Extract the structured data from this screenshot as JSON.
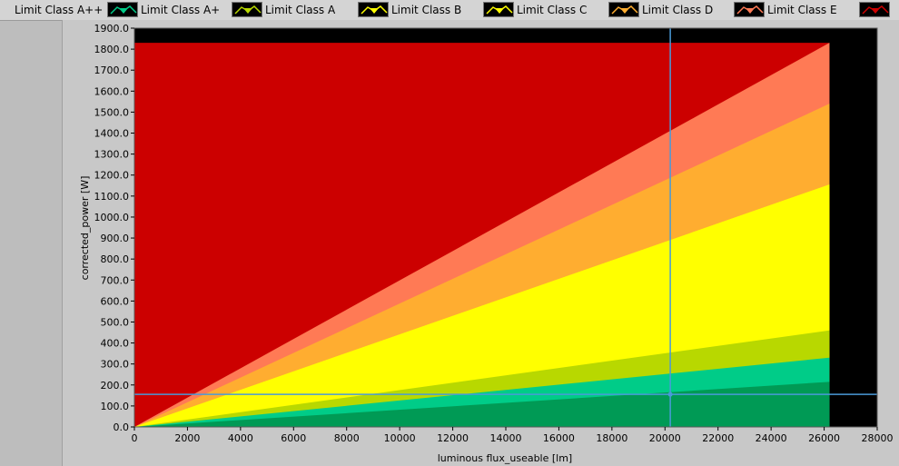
{
  "legend": [
    {
      "label": "Limit Class A++",
      "color": "#009a55"
    },
    {
      "label": "Limit Class A+",
      "color": "#00cc88"
    },
    {
      "label": "Limit Class A",
      "color": "#b8d800"
    },
    {
      "label": "Limit Class B",
      "color": "#ffff00"
    },
    {
      "label": "Limit Class C",
      "color": "#ffff00"
    },
    {
      "label": "Limit Class D",
      "color": "#ffad30"
    },
    {
      "label": "Limit Class E",
      "color": "#ff7a55"
    },
    {
      "label": "",
      "color": "#cc0000"
    }
  ],
  "chart_data": {
    "type": "area",
    "xlabel": "luminous flux_useable [lm]",
    "ylabel": "corrected_power [W]",
    "xlim": [
      0,
      28000
    ],
    "ylim": [
      0,
      1900
    ],
    "x_ticks": [
      0,
      2000,
      4000,
      6000,
      8000,
      10000,
      12000,
      14000,
      16000,
      18000,
      20000,
      22000,
      24000,
      26000,
      28000
    ],
    "y_ticks": [
      0,
      100,
      200,
      300,
      400,
      500,
      600,
      700,
      800,
      900,
      1000,
      1100,
      1200,
      1300,
      1400,
      1500,
      1600,
      1700,
      1800,
      1900
    ],
    "x_tick_labels": [
      "0",
      "2000",
      "4000",
      "6000",
      "8000",
      "10000",
      "12000",
      "14000",
      "16000",
      "18000",
      "20000",
      "22000",
      "24000",
      "26000",
      "28000"
    ],
    "y_tick_labels": [
      "0.0",
      "100.0",
      "200.0",
      "300.0",
      "400.0",
      "500.0",
      "600.0",
      "700.0",
      "800.0",
      "900.0",
      "1000.0",
      "1100.0",
      "1200.0",
      "1300.0",
      "1400.0",
      "1500.0",
      "1600.0",
      "1700.0",
      "1800.0",
      "1900.0"
    ],
    "x_max_data": 26200,
    "y_cap": 1830,
    "series": [
      {
        "name": "Limit Class A++",
        "color": "#009a55",
        "x": [
          0,
          26200
        ],
        "y": [
          0,
          215
        ]
      },
      {
        "name": "Limit Class A+",
        "color": "#00cc88",
        "x": [
          0,
          26200
        ],
        "y": [
          0,
          330
        ]
      },
      {
        "name": "Limit Class A",
        "color": "#b8d800",
        "x": [
          0,
          26200
        ],
        "y": [
          0,
          460
        ]
      },
      {
        "name": "Limit Class B",
        "color": "#ffff00",
        "x": [
          0,
          26200
        ],
        "y": [
          0,
          1155
        ]
      },
      {
        "name": "Limit Class C",
        "color": "#ffff00",
        "x": [
          0,
          26200
        ],
        "y": [
          0,
          1155
        ]
      },
      {
        "name": "Limit Class D",
        "color": "#ffad30",
        "x": [
          0,
          26200
        ],
        "y": [
          0,
          1540
        ]
      },
      {
        "name": "Limit Class E",
        "color": "#ff7a55",
        "x": [
          0,
          26200
        ],
        "y": [
          0,
          1830
        ]
      }
    ],
    "top_region_color": "#cc0000",
    "background_color": "#000000",
    "cursor": {
      "x": 20200,
      "y": 155,
      "color": "#4a9ad8"
    },
    "grid": false
  }
}
